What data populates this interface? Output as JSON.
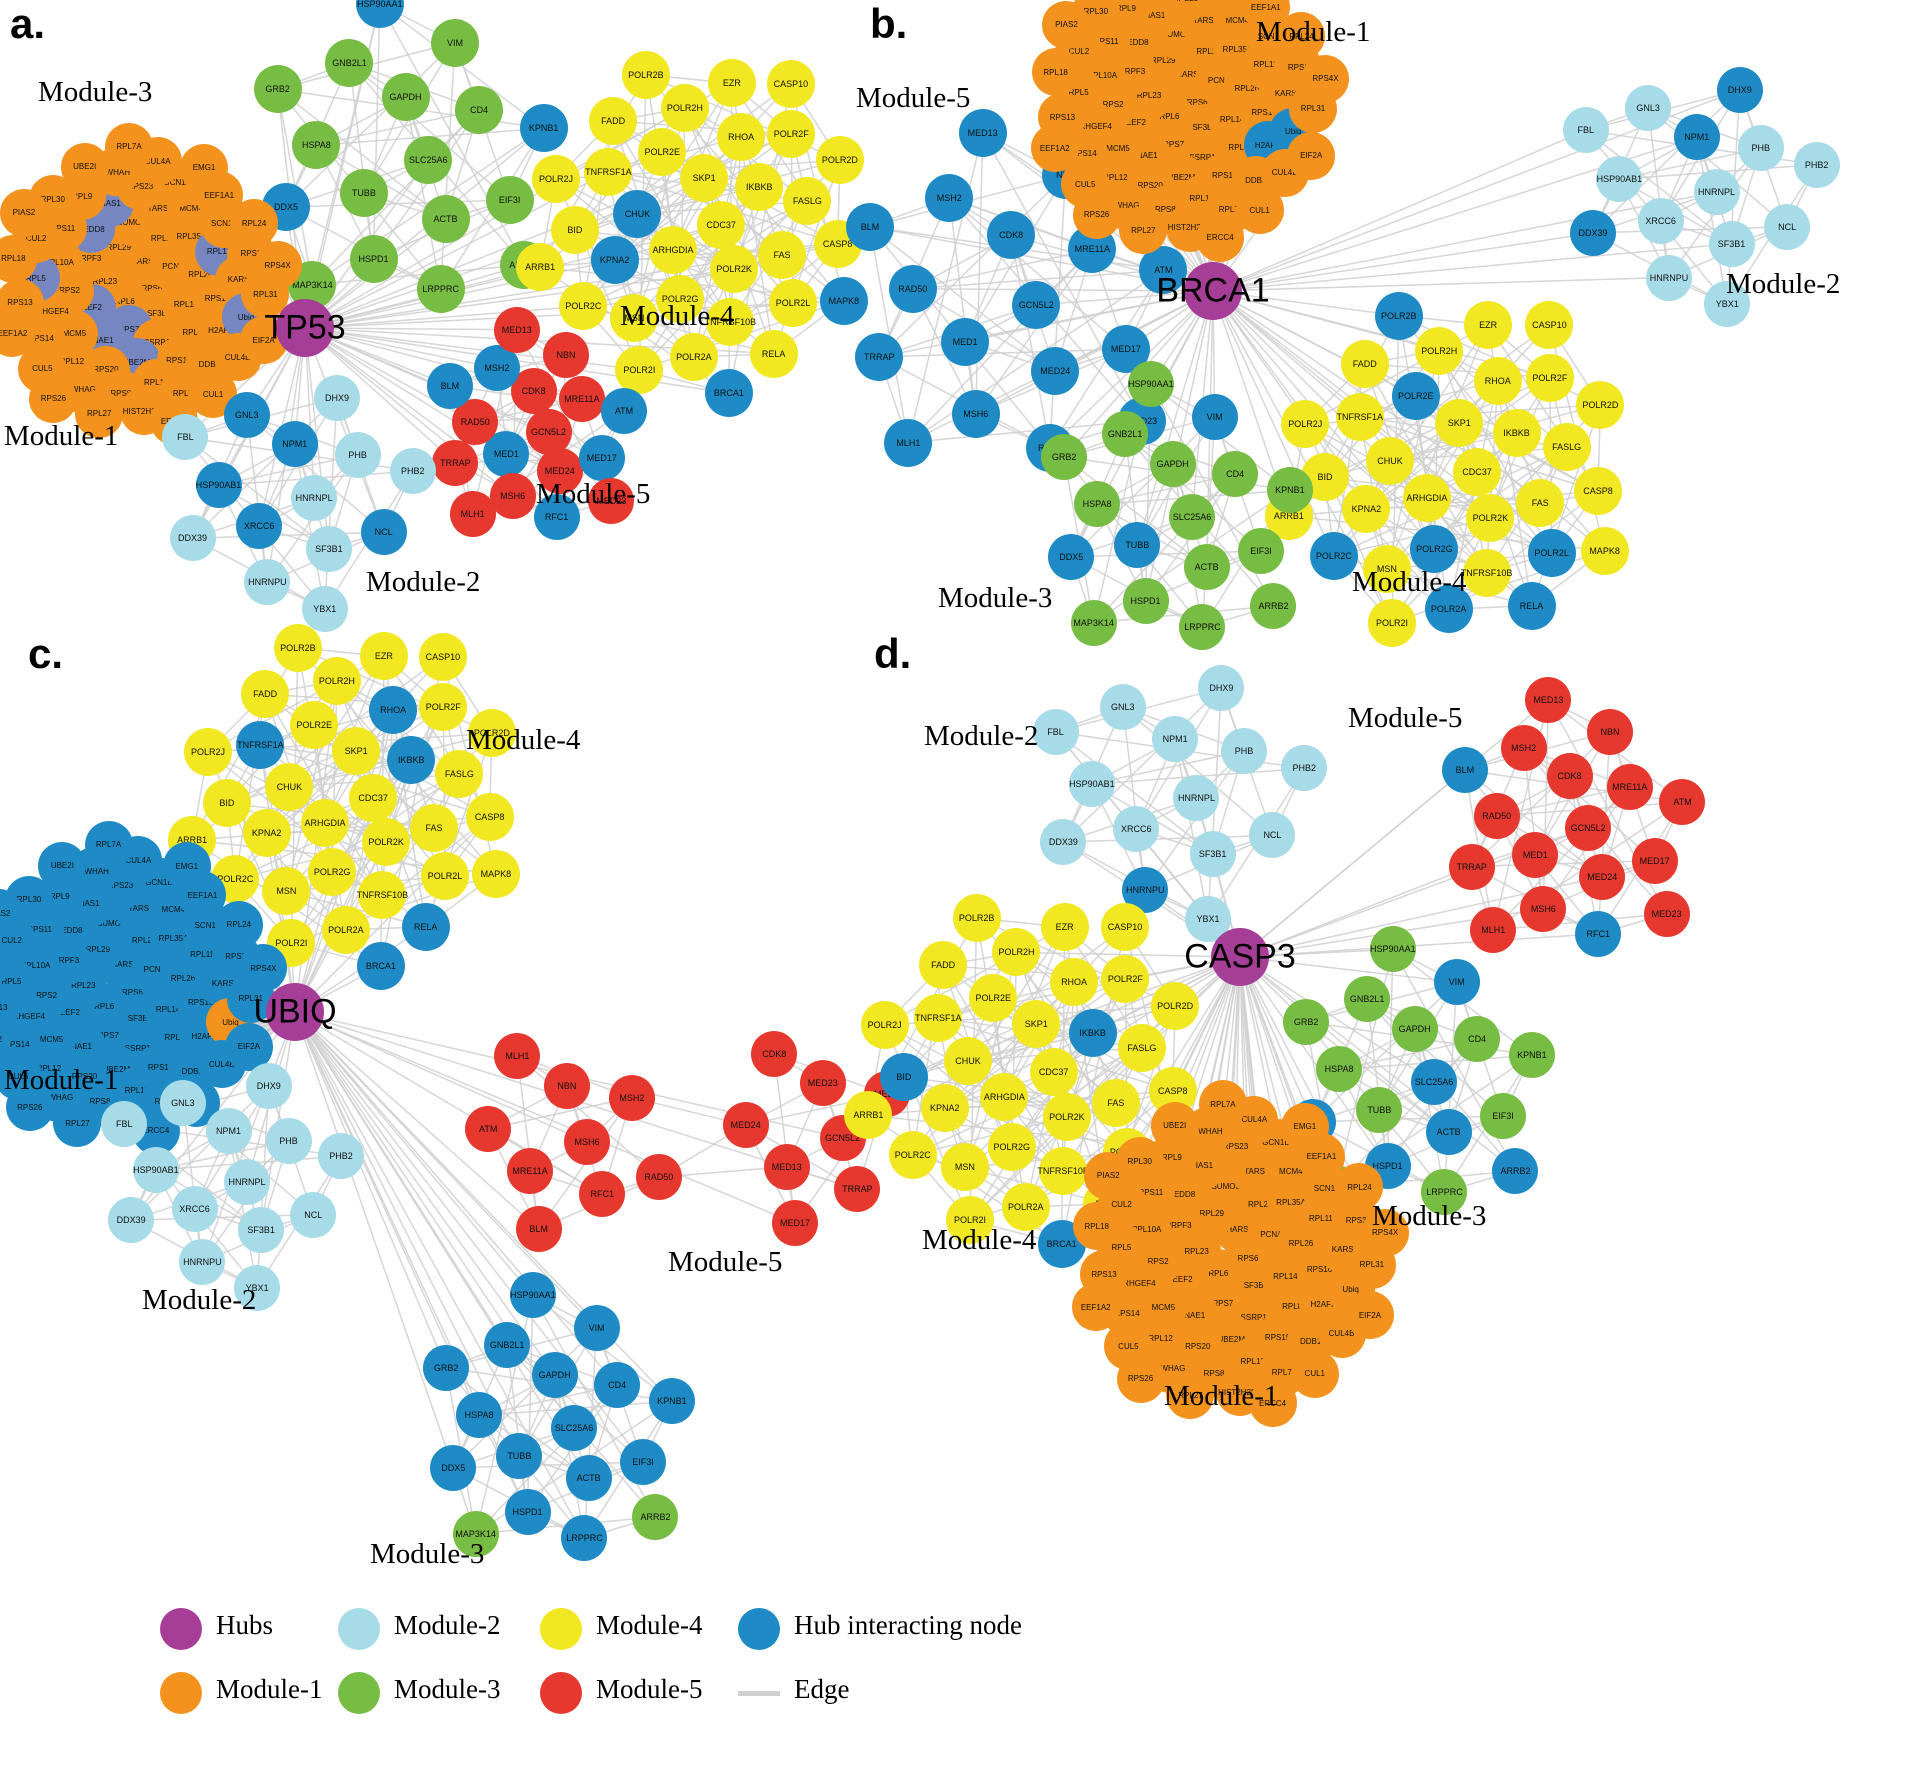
{
  "colors": {
    "hub": "#A63E97",
    "module1": "#F4921E",
    "module2": "#A7DBE8",
    "module3": "#77BC43",
    "module4": "#F2E821",
    "module5": "#E6382E",
    "hub_interacting": "#1E8BC6",
    "slate": "#7586C1",
    "edge": "#CFCFCF"
  },
  "gene_sets": {
    "module1": [
      "RPS6",
      "RPL6",
      "HARS",
      "SF3B3",
      "RPL23",
      "PCNA",
      "RPS7",
      "RPL29",
      "RPL14",
      "EEF2",
      "RPL21",
      "SSRP1",
      "PRPF3",
      "RPL26",
      "NAE1",
      "SUMO3",
      "RPL8",
      "RPS2",
      "RPL35A",
      "UBE2M",
      "NEDD8",
      "RPS16",
      "MCM5",
      "TARS",
      "RPS15A",
      "RPL10A",
      "RPL11",
      "RPS20",
      "PIAS1",
      "H2AFX",
      "ARHGEF4",
      "MCM4",
      "RPL13",
      "RPS11",
      "KARS",
      "RPL12",
      "RPS23",
      "DDB1",
      "RPL5",
      "SCN1A",
      "RPS8",
      "RPL9",
      "Ubiq",
      "RPS14",
      "GCN1L1",
      "RPL7",
      "CUL2",
      "RPS3",
      "YWHAG",
      "YWHAH",
      "CUL4B",
      "RPS13",
      "EEF1A1",
      "HIST2H2BE",
      "RPL30",
      "RPL31",
      "CUL5",
      "CUL4A",
      "CUL1",
      "RPL18",
      "RPL24",
      "RPL27",
      "UBE2I",
      "EIF2A",
      "EEF1A2",
      "EMG1",
      "ERCC4",
      "PIAS2",
      "RPS4X",
      "RPS26",
      "RPL7A"
    ],
    "module2": [
      "HNRNPL",
      "XRCC6",
      "NPM1",
      "SF3B1",
      "HSP90AB1",
      "PHB",
      "HNRNPU",
      "GNL3",
      "NCL",
      "DDX39",
      "DHX9",
      "YBX1",
      "FBL",
      "PHB2"
    ],
    "module3": [
      "SLC25A6",
      "TUBB",
      "GAPDH",
      "ACTB",
      "HSPA8",
      "CD4",
      "HSPD1",
      "GNB2L1",
      "EIF3I",
      "DDX5",
      "VIM",
      "LRPPRC",
      "GRB2",
      "KPNB1",
      "MAP3K14",
      "HSP90AA1",
      "ARRB2"
    ],
    "module4": [
      "CDC37",
      "ARHGDIA",
      "SKP1",
      "POLR2K",
      "CHUK",
      "IKBKB",
      "POLR2G",
      "POLR2E",
      "FAS",
      "KPNA2",
      "RHOA",
      "TNFRSF10B",
      "TNFRSF1A",
      "FASLG",
      "MSN",
      "POLR2H",
      "POLR2L",
      "BID",
      "POLR2F",
      "POLR2A",
      "FADD",
      "CASP8",
      "POLR2C",
      "EZR",
      "RELA",
      "POLR2J",
      "POLR2D",
      "POLR2I",
      "POLR2B",
      "MAPK8",
      "ARRB1",
      "CASP10",
      "BRCA1"
    ],
    "module5": [
      "GCN5L2",
      "MED1",
      "CDK8",
      "MED24",
      "RAD50",
      "MRE11A",
      "MSH6",
      "MSH2",
      "MED17",
      "TRRAP",
      "NBN",
      "RFC1",
      "BLM",
      "ATM",
      "MLH1",
      "MED13",
      "MED23"
    ]
  },
  "panels": [
    {
      "id": "a",
      "letter": "a.",
      "hub": "TP53",
      "clusters": [
        {
          "id": "a_m3",
          "label": "Module-3",
          "default": "module3",
          "nodes_ref": "module3",
          "accents": {
            "DDX5": "hub_interacting",
            "KPNB1": "hub_interacting",
            "HSP90AA1": "hub_interacting"
          }
        },
        {
          "id": "a_m1",
          "label": "Module-1",
          "default": "module1",
          "nodes_ref": "module1",
          "accents": {
            "RPS7": "slate",
            "EEF2": "slate",
            "NAE1": "slate",
            "UBE2M": "slate",
            "NEDD8": "slate",
            "RPL11": "slate",
            "PIAS1": "slate",
            "RPL5": "slate",
            "Ubiq": "slate"
          }
        },
        {
          "id": "a_m4",
          "label": "Module-4",
          "default": "module4",
          "nodes_ref": "module4",
          "accents": {
            "KPNA2": "hub_interacting",
            "CHUK": "hub_interacting",
            "MAPK8": "hub_interacting",
            "BRCA1": "hub_interacting"
          }
        },
        {
          "id": "a_m5",
          "label": "Module-5",
          "default": "module5",
          "nodes_ref": "module5",
          "accents": {
            "MSH2": "hub_interacting",
            "MED17": "hub_interacting",
            "MED1": "hub_interacting",
            "RFC1": "hub_interacting",
            "BLM": "hub_interacting",
            "ATM": "hub_interacting"
          }
        },
        {
          "id": "a_m2",
          "label": "Module-2",
          "default": "module2",
          "nodes_ref": "module2",
          "accents": {
            "XRCC6": "hub_interacting",
            "NPM1": "hub_interacting",
            "HSP90AB1": "hub_interacting",
            "GNL3": "hub_interacting",
            "NCL": "hub_interacting"
          }
        }
      ]
    },
    {
      "id": "b",
      "letter": "b.",
      "hub": "BRCA1",
      "clusters": [
        {
          "id": "b_m5",
          "label": "Module-5",
          "default": "hub_interacting",
          "nodes_ref": "module5",
          "accents": {}
        },
        {
          "id": "b_m1",
          "label": "Module-1",
          "default": "module1",
          "nodes_ref": "module1",
          "accents": {
            "Ubiq": "hub_interacting",
            "H2AFX": "hub_interacting"
          }
        },
        {
          "id": "b_m2",
          "label": "Module-2",
          "default": "module2",
          "nodes_ref": "module2",
          "accents": {
            "NPM1": "hub_interacting",
            "DHX9": "hub_interacting",
            "DDX39": "hub_interacting"
          }
        },
        {
          "id": "b_m4",
          "label": "Module-4",
          "default": "module4",
          "nodes_ref": "module4",
          "omit": [
            "BRCA1"
          ],
          "accents": {
            "POLR2A": "hub_interacting",
            "POLR2C": "hub_interacting",
            "POLR2B": "hub_interacting",
            "POLR2L": "hub_interacting",
            "POLR2E": "hub_interacting",
            "RELA": "hub_interacting",
            "POLR2G": "hub_interacting"
          }
        },
        {
          "id": "b_m3",
          "label": "Module-3",
          "default": "module3",
          "nodes_ref": "module3",
          "accents": {
            "DDX5": "hub_interacting",
            "TUBB": "hub_interacting",
            "VIM": "hub_interacting"
          }
        }
      ]
    },
    {
      "id": "c",
      "letter": "c.",
      "hub": "UBIQ",
      "clusters": [
        {
          "id": "c_m4",
          "label": "Module-4",
          "default": "module4",
          "nodes_ref": "module4",
          "accents": {
            "BRCA1": "hub_interacting",
            "IKBKB": "hub_interacting",
            "TNFRSF1A": "hub_interacting",
            "RELA": "hub_interacting",
            "RHOA": "hub_interacting"
          }
        },
        {
          "id": "c_m1",
          "label": "Module-1",
          "default": "hub_interacting",
          "nodes_ref": "module1",
          "accents": {
            "Ubiq": "module1"
          }
        },
        {
          "id": "c_m5a",
          "label": "Module-5",
          "default": "module5",
          "nodes": [
            "MSH6",
            "MRE11A",
            "NBN",
            "RFC1",
            "ATM",
            "MSH2",
            "BLM",
            "MLH1",
            "RAD50"
          ],
          "accents": {}
        },
        {
          "id": "c_m5b",
          "label": "",
          "default": "module5",
          "nodes": [
            "GCN5L2",
            "MED13",
            "MED23",
            "TRRAP",
            "MED24",
            "MED1",
            "MED17",
            "CDK8"
          ],
          "accents": {}
        },
        {
          "id": "c_m2",
          "label": "Module-2",
          "default": "module2",
          "nodes_ref": "module2",
          "accents": {}
        },
        {
          "id": "c_m3",
          "label": "Module-3",
          "default": "hub_interacting",
          "nodes_ref": "module3",
          "accents": {
            "ARRB2": "module3",
            "MAP3K14": "module3"
          }
        }
      ]
    },
    {
      "id": "d",
      "letter": "d.",
      "hub": "CASP3",
      "clusters": [
        {
          "id": "d_m2",
          "label": "Module-2",
          "default": "module2",
          "nodes_ref": "module2",
          "accents": {
            "HNRNPU": "hub_interacting"
          }
        },
        {
          "id": "d_m5",
          "label": "Module-5",
          "default": "module5",
          "nodes_ref": "module5",
          "accents": {
            "RFC1": "hub_interacting",
            "BLM": "hub_interacting"
          }
        },
        {
          "id": "d_m4",
          "label": "Module-4",
          "default": "module4",
          "nodes_ref": "module4",
          "accents": {
            "BRCA1": "hub_interacting",
            "IKBKB": "hub_interacting",
            "BID": "hub_interacting"
          }
        },
        {
          "id": "d_m3",
          "label": "Module-3",
          "default": "module3",
          "nodes_ref": "module3",
          "accents": {
            "VIM": "hub_interacting",
            "SLC25A6": "hub_interacting",
            "ACTB": "hub_interacting",
            "HSPD1": "hub_interacting",
            "ARRB2": "hub_interacting",
            "DDX5": "hub_interacting"
          }
        },
        {
          "id": "d_m1",
          "label": "Module-1",
          "default": "module1",
          "nodes_ref": "module1",
          "accents": {}
        }
      ]
    }
  ],
  "legend": {
    "items": [
      {
        "label": "Hubs",
        "color": "hub",
        "shape": "circle"
      },
      {
        "label": "Module-2",
        "color": "module2",
        "shape": "circle"
      },
      {
        "label": "Module-4",
        "color": "module4",
        "shape": "circle"
      },
      {
        "label": "Hub interacting node",
        "color": "hub_interacting",
        "shape": "circle"
      },
      {
        "label": "Module-1",
        "color": "module1",
        "shape": "circle"
      },
      {
        "label": "Module-3",
        "color": "module3",
        "shape": "circle"
      },
      {
        "label": "Module-5",
        "color": "module5",
        "shape": "circle"
      },
      {
        "label": "Edge",
        "color": "edge",
        "shape": "line"
      }
    ]
  }
}
